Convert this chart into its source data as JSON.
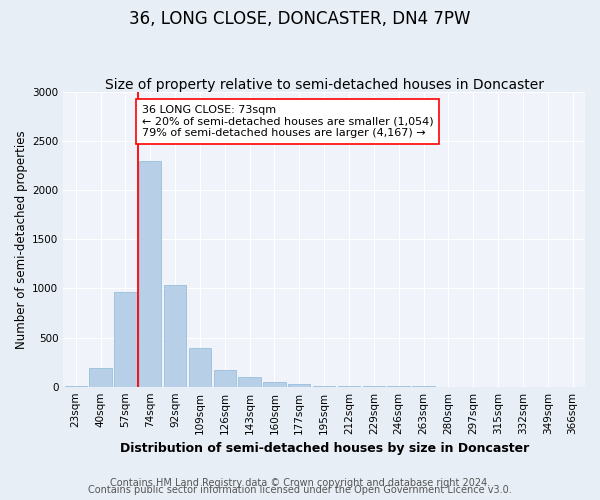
{
  "title": "36, LONG CLOSE, DONCASTER, DN4 7PW",
  "subtitle": "Size of property relative to semi-detached houses in Doncaster",
  "xlabel": "Distribution of semi-detached houses by size in Doncaster",
  "ylabel": "Number of semi-detached properties",
  "categories": [
    "23sqm",
    "40sqm",
    "57sqm",
    "74sqm",
    "92sqm",
    "109sqm",
    "126sqm",
    "143sqm",
    "160sqm",
    "177sqm",
    "195sqm",
    "212sqm",
    "229sqm",
    "246sqm",
    "263sqm",
    "280sqm",
    "297sqm",
    "315sqm",
    "332sqm",
    "349sqm",
    "366sqm"
  ],
  "values": [
    10,
    195,
    960,
    2300,
    1040,
    390,
    170,
    100,
    50,
    25,
    12,
    8,
    4,
    5,
    3,
    0,
    0,
    0,
    0,
    0,
    0
  ],
  "bar_color": "#b8cfe8",
  "bar_edgecolor": "#8fb8d8",
  "annotation_title": "36 LONG CLOSE: 73sqm",
  "annotation_line1": "← 20% of semi-detached houses are smaller (1,054)",
  "annotation_line2": "79% of semi-detached houses are larger (4,167) →",
  "ylim": [
    0,
    3000
  ],
  "yticks": [
    0,
    500,
    1000,
    1500,
    2000,
    2500,
    3000
  ],
  "footer1": "Contains HM Land Registry data © Crown copyright and database right 2024.",
  "footer2": "Contains public sector information licensed under the Open Government Licence v3.0.",
  "bg_color": "#e8eef6",
  "plot_bg_color": "#f0f4fa",
  "title_fontsize": 12,
  "subtitle_fontsize": 10,
  "axis_label_fontsize": 8.5,
  "tick_fontsize": 7.5,
  "annotation_fontsize": 8,
  "footer_fontsize": 7
}
